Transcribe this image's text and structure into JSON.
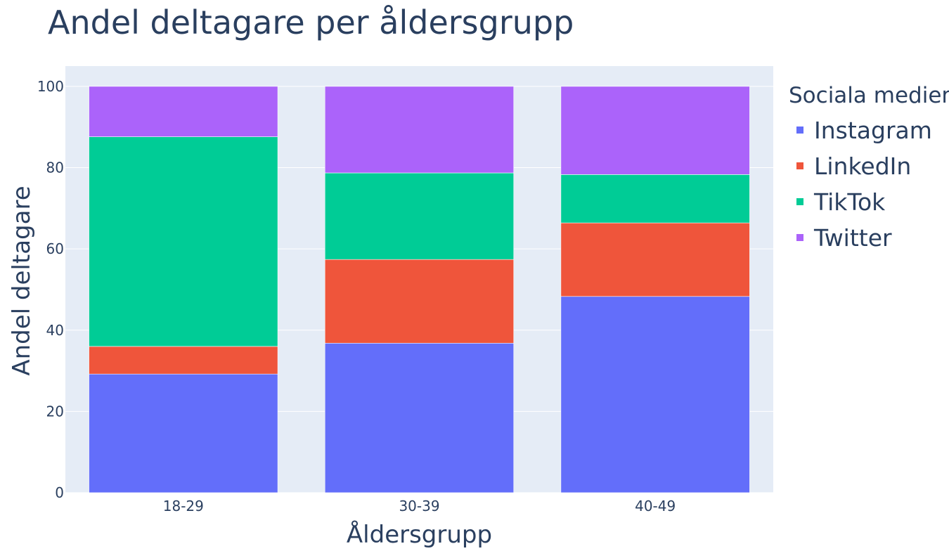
{
  "chart_data": {
    "type": "bar",
    "stacked": true,
    "title": "Andel deltagare per åldersgrupp",
    "xlabel": "Åldersgrupp",
    "ylabel": "Andel deltagare",
    "categories": [
      "18-29",
      "30-39",
      "40-49"
    ],
    "y_ticks": [
      "0",
      "20",
      "40",
      "60",
      "80",
      "100"
    ],
    "ylim": [
      0,
      105
    ],
    "grid": true,
    "legend": {
      "title": "Sociala medier",
      "position": "right"
    },
    "series": [
      {
        "name": "Instagram",
        "color": "#636efa",
        "values": [
          29.2,
          36.8,
          48.3
        ]
      },
      {
        "name": "LinkedIn",
        "color": "#ef553b",
        "values": [
          6.8,
          20.6,
          18.1
        ]
      },
      {
        "name": "TikTok",
        "color": "#00cc96",
        "values": [
          51.6,
          21.3,
          11.9
        ]
      },
      {
        "name": "Twitter",
        "color": "#ab63fa",
        "values": [
          12.4,
          21.3,
          21.7
        ]
      }
    ],
    "colors": {
      "plot_background": "#e5ecf6",
      "grid": "#ffffff",
      "text": "#2a3f5f"
    }
  }
}
